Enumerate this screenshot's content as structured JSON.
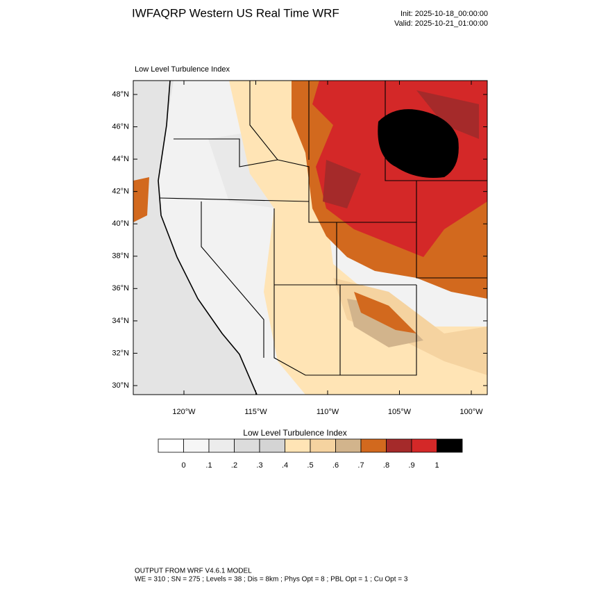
{
  "header": {
    "title": "IWFAQRP Western US Real Time WRF",
    "init": "Init: 2025-10-18_00:00:00",
    "valid": "Valid: 2025-10-21_01:00:00"
  },
  "map": {
    "subtitle": "Low Level Turbulence Index",
    "lat_ticks": [
      {
        "value": 48,
        "label": "48°N"
      },
      {
        "value": 46,
        "label": "46°N"
      },
      {
        "value": 44,
        "label": "44°N"
      },
      {
        "value": 42,
        "label": "42°N"
      },
      {
        "value": 40,
        "label": "40°N"
      },
      {
        "value": 38,
        "label": "38°N"
      },
      {
        "value": 36,
        "label": "36°N"
      },
      {
        "value": 34,
        "label": "34°N"
      },
      {
        "value": 32,
        "label": "32°N"
      },
      {
        "value": 30,
        "label": "30°N"
      }
    ],
    "lon_ticks": [
      {
        "value": -120,
        "label": "120°W"
      },
      {
        "value": -115,
        "label": "115°W"
      },
      {
        "value": -110,
        "label": "110°W"
      },
      {
        "value": -105,
        "label": "105°W"
      },
      {
        "value": -100,
        "label": "100°W"
      }
    ]
  },
  "colorbar": {
    "title": "Low Level Turbulence Index",
    "colors": [
      "#ffffff",
      "#f6f6f6",
      "#ececec",
      "#dcdcdc",
      "#d4d4d4",
      "#ffe4b5",
      "#f5d3a0",
      "#d2b48c",
      "#d2691e",
      "#a52a2a",
      "#d42828",
      "#000000"
    ],
    "ticks": [
      {
        "value": 0,
        "label": "0"
      },
      {
        "value": 0.1,
        "label": ".1"
      },
      {
        "value": 0.2,
        "label": ".2"
      },
      {
        "value": 0.3,
        "label": ".3"
      },
      {
        "value": 0.4,
        "label": ".4"
      },
      {
        "value": 0.5,
        "label": ".5"
      },
      {
        "value": 0.6,
        "label": ".6"
      },
      {
        "value": 0.7,
        "label": ".7"
      },
      {
        "value": 0.8,
        "label": ".8"
      },
      {
        "value": 0.9,
        "label": ".9"
      },
      {
        "value": 1,
        "label": "1"
      }
    ]
  },
  "footer": {
    "line1": "OUTPUT FROM WRF V4.6.1 MODEL",
    "line2": "WE = 310 ; SN = 275 ; Levels = 38 ; Dis = 8km ; Phys Opt = 8 ; PBL Opt = 1 ; Cu Opt = 3"
  }
}
